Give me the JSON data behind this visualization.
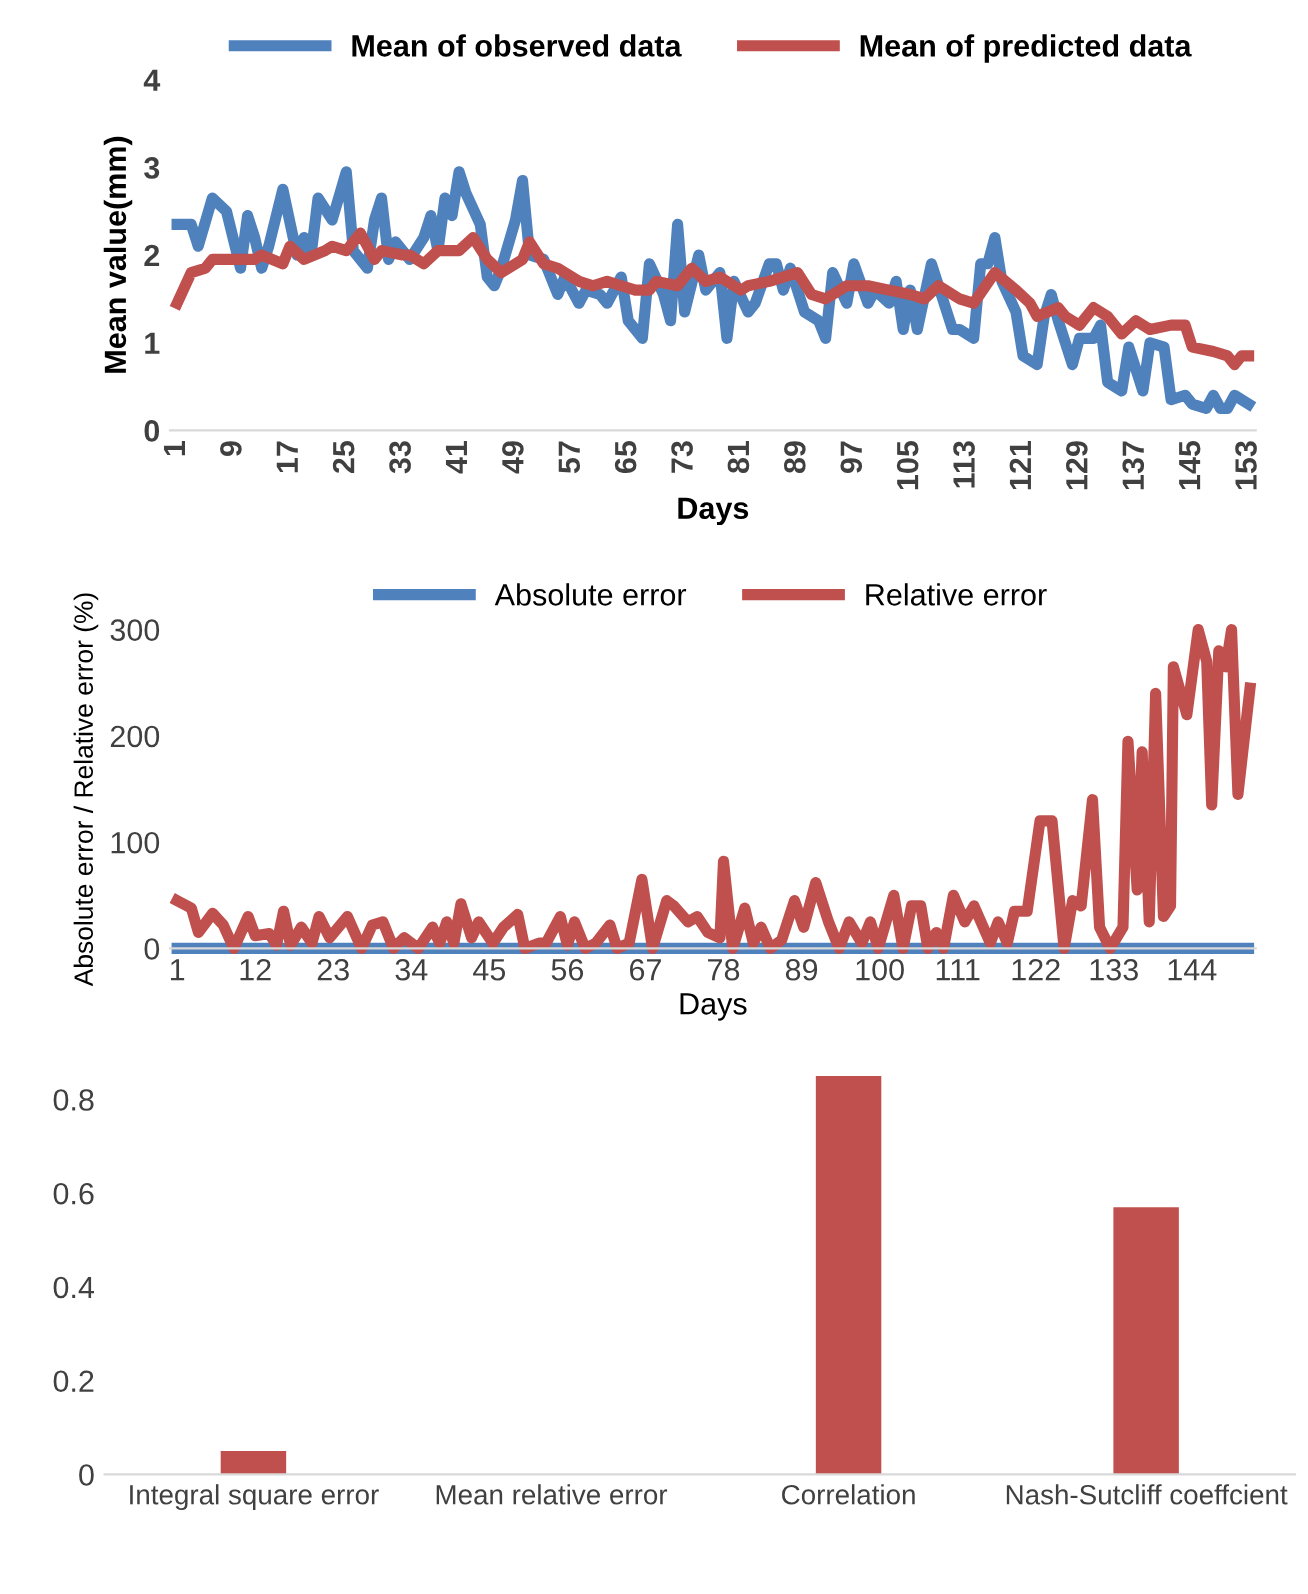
{
  "chart_data": [
    {
      "type": "line",
      "xlabel": "Days",
      "ylabel": "Mean value(mm)",
      "xlim": [
        0,
        154
      ],
      "xticks": [
        1,
        9,
        17,
        25,
        33,
        41,
        49,
        57,
        65,
        73,
        81,
        89,
        97,
        105,
        113,
        121,
        129,
        137,
        145,
        153
      ],
      "ylim": [
        0,
        4
      ],
      "yticks": [
        0,
        1,
        2,
        3,
        4
      ],
      "legend": "top",
      "grid": false,
      "series": [
        {
          "name": "Mean of observed data",
          "color": "#4f81bd",
          "x": [
            1,
            3,
            4,
            6,
            8,
            10,
            11,
            12,
            13,
            14,
            16,
            18,
            19,
            20,
            21,
            23,
            25,
            26,
            28,
            29,
            30,
            31,
            32,
            34,
            36,
            37,
            38,
            39,
            40,
            41,
            42,
            44,
            45,
            46,
            47,
            49,
            50,
            51,
            53,
            55,
            56,
            58,
            59,
            61,
            62,
            64,
            65,
            67,
            68,
            70,
            71,
            72,
            73,
            75,
            76,
            78,
            79,
            80,
            82,
            83,
            85,
            86,
            87,
            88,
            90,
            92,
            93,
            94,
            96,
            97,
            99,
            100,
            102,
            103,
            104,
            105,
            106,
            108,
            110,
            111,
            112,
            114,
            115,
            116,
            117,
            118,
            120,
            121,
            123,
            124,
            125,
            126,
            128,
            129,
            131,
            132,
            133,
            135,
            136,
            138,
            139,
            141,
            142,
            144,
            145,
            147,
            148,
            149,
            150,
            151,
            153
          ],
          "values": [
            2.35,
            2.35,
            2.1,
            2.65,
            2.5,
            1.85,
            2.45,
            2.2,
            1.85,
            2.1,
            2.75,
            2.0,
            2.2,
            2.0,
            2.65,
            2.4,
            2.95,
            2.05,
            1.85,
            2.4,
            2.65,
            1.95,
            2.15,
            1.95,
            2.2,
            2.45,
            2.05,
            2.65,
            2.45,
            2.95,
            2.7,
            2.35,
            1.75,
            1.65,
            1.85,
            2.4,
            2.85,
            2.0,
            1.95,
            1.55,
            1.75,
            1.45,
            1.6,
            1.55,
            1.45,
            1.75,
            1.25,
            1.05,
            1.9,
            1.55,
            1.25,
            2.35,
            1.35,
            2.0,
            1.6,
            1.8,
            1.05,
            1.7,
            1.35,
            1.45,
            1.9,
            1.9,
            1.6,
            1.85,
            1.35,
            1.25,
            1.05,
            1.8,
            1.45,
            1.9,
            1.45,
            1.6,
            1.45,
            1.7,
            1.15,
            1.6,
            1.15,
            1.9,
            1.4,
            1.15,
            1.15,
            1.05,
            1.9,
            1.9,
            2.2,
            1.7,
            1.35,
            0.85,
            0.75,
            1.3,
            1.55,
            1.25,
            0.75,
            1.05,
            1.05,
            1.2,
            0.55,
            0.45,
            0.95,
            0.45,
            1.0,
            0.95,
            0.35,
            0.4,
            0.3,
            0.25,
            0.4,
            0.25,
            0.25,
            0.4,
            0.3
          ]
        },
        {
          "name": "Mean of predicted data",
          "color": "#c0504d",
          "x": [
            1,
            3,
            5,
            6,
            9,
            12,
            13,
            16,
            17,
            19,
            22,
            23,
            25,
            27,
            29,
            30,
            33,
            34,
            36,
            38,
            41,
            43,
            45,
            47,
            50,
            51,
            53,
            55,
            58,
            60,
            62,
            64,
            66,
            68,
            69,
            72,
            74,
            76,
            78,
            81,
            82,
            85,
            89,
            91,
            93,
            96,
            99,
            102,
            105,
            107,
            109,
            112,
            114,
            117,
            120,
            122,
            123,
            126,
            127,
            129,
            131,
            133,
            135,
            137,
            139,
            142,
            144,
            145,
            148,
            150,
            151,
            152,
            153
          ],
          "values": [
            1.45,
            1.8,
            1.85,
            1.95,
            1.95,
            1.95,
            2.0,
            1.9,
            2.1,
            1.95,
            2.05,
            2.1,
            2.05,
            2.25,
            1.95,
            2.05,
            2.0,
            2.0,
            1.9,
            2.05,
            2.05,
            2.2,
            1.95,
            1.8,
            1.95,
            2.15,
            1.9,
            1.85,
            1.7,
            1.65,
            1.7,
            1.65,
            1.6,
            1.6,
            1.7,
            1.65,
            1.85,
            1.7,
            1.75,
            1.6,
            1.65,
            1.7,
            1.8,
            1.55,
            1.5,
            1.65,
            1.65,
            1.6,
            1.55,
            1.5,
            1.65,
            1.5,
            1.45,
            1.8,
            1.6,
            1.45,
            1.3,
            1.4,
            1.3,
            1.2,
            1.4,
            1.3,
            1.1,
            1.25,
            1.15,
            1.2,
            1.2,
            0.95,
            0.9,
            0.85,
            0.75,
            0.85,
            0.85
          ]
        }
      ]
    },
    {
      "type": "line",
      "xlabel": "Days",
      "ylabel": "Absolute error / Relative error (%)",
      "xlim": [
        0,
        153
      ],
      "xticks": [
        1,
        12,
        23,
        34,
        45,
        56,
        67,
        78,
        89,
        100,
        111,
        122,
        133,
        144
      ],
      "ylim": [
        0,
        300
      ],
      "yticks": [
        0,
        100,
        200,
        300
      ],
      "legend": "top",
      "grid": false,
      "series": [
        {
          "name": "Absolute error",
          "color": "#4f81bd",
          "x": [
            1,
            152
          ],
          "values": [
            0,
            0
          ]
        },
        {
          "name": "Relative error",
          "color": "#c0504d",
          "x": [
            1,
            3,
            4,
            6,
            7.5,
            9,
            11,
            12,
            14,
            15,
            16,
            17,
            18.5,
            20,
            21,
            22.5,
            25,
            27,
            28.5,
            30,
            31.5,
            33,
            35,
            37,
            38,
            39,
            40,
            41,
            42.5,
            43.5,
            45.5,
            47,
            49,
            50,
            52,
            53,
            55,
            56,
            57,
            58.5,
            60,
            62,
            63,
            64.7,
            66.5,
            68,
            70,
            71,
            73,
            74.3,
            75.8,
            77.5,
            78,
            79.3,
            81,
            82.2,
            83.3,
            84.6,
            86.2,
            88,
            89.3,
            91,
            92.8,
            94.3,
            95.7,
            97.5,
            98.7,
            99.8,
            102,
            103.3,
            104.5,
            105.8,
            106.8,
            108,
            109,
            110.4,
            112,
            113.3,
            115.6,
            116.7,
            118,
            119,
            120.8,
            122.6,
            124.3,
            126,
            127.2,
            128.4,
            130,
            131,
            132.5,
            134.3,
            135,
            136.3,
            137,
            138,
            138.9,
            140,
            141,
            141.4,
            143.3,
            144.9,
            146.1,
            146.8,
            147.8,
            148.8,
            149.6,
            150.5,
            152.2
          ],
          "values": [
            45,
            38,
            15,
            33,
            22,
            0,
            30,
            12,
            14,
            3,
            35,
            3,
            20,
            5,
            30,
            10,
            30,
            0,
            22,
            25,
            0,
            10,
            0,
            20,
            5,
            25,
            5,
            42,
            10,
            25,
            5,
            20,
            32,
            0,
            5,
            5,
            30,
            3,
            25,
            0,
            5,
            22,
            0,
            5,
            65,
            0,
            45,
            40,
            25,
            30,
            15,
            10,
            82,
            0,
            38,
            5,
            20,
            0,
            8,
            45,
            20,
            62,
            25,
            0,
            25,
            5,
            25,
            0,
            50,
            0,
            40,
            40,
            0,
            15,
            0,
            50,
            25,
            40,
            5,
            25,
            5,
            35,
            35,
            120,
            120,
            0,
            45,
            40,
            140,
            20,
            0,
            20,
            195,
            55,
            185,
            25,
            240,
            30,
            40,
            265,
            220,
            300,
            270,
            135,
            280,
            265,
            300,
            145,
            245
          ]
        }
      ]
    },
    {
      "type": "bar",
      "categories": [
        "Integral square error",
        "Mean relative error",
        "Correlation",
        "Nash-Sutcliff coeffcient"
      ],
      "values": [
        0.05,
        0,
        0.85,
        0.57
      ],
      "color": "#c0504d",
      "ylim": [
        0,
        0.85
      ],
      "yticks": [
        0,
        0.2,
        0.4,
        0.6,
        0.8
      ],
      "grid": false
    }
  ]
}
